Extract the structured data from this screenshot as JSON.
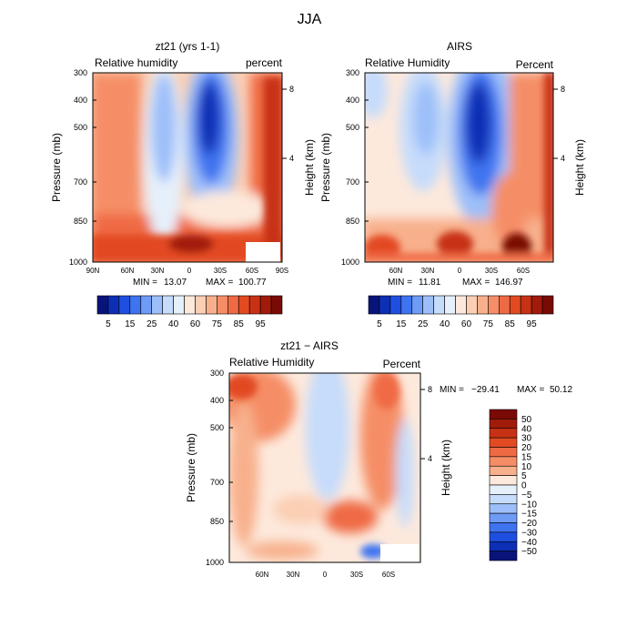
{
  "figure_title": "JJA",
  "chart_data": [
    {
      "type": "heatmap",
      "id": "model",
      "title": "zt21 (yrs 1-1)",
      "field_label": "Relative humidity",
      "units_label": "percent",
      "ylabel": "Pressure (mb)",
      "y2label": "Height (km)",
      "y_ticks": [
        "300",
        "400",
        "500",
        "700",
        "850",
        "1000"
      ],
      "y2_ticks": [
        "8",
        "4"
      ],
      "x_ticks": [
        "90N",
        "60N",
        "30N",
        "0",
        "30S",
        "60S",
        "90S"
      ],
      "stats": {
        "min_label": "MIN =",
        "min": "13.07",
        "max_label": "MAX =",
        "max": "100.77"
      },
      "colorbar": {
        "labels": [
          "5",
          "15",
          "25",
          "40",
          "60",
          "75",
          "85",
          "95"
        ],
        "colors": [
          "#08147a",
          "#0d2fb5",
          "#1f4fe0",
          "#3f74f0",
          "#6e9bf6",
          "#9dbff9",
          "#c6dcfb",
          "#e6f0fb",
          "#fde9dc",
          "#fbcfb4",
          "#f8b08c",
          "#f58e66",
          "#ef6a44",
          "#e24a22",
          "#c73214",
          "#a11b0a",
          "#7a0a05"
        ]
      }
    },
    {
      "type": "heatmap",
      "id": "obs",
      "title": "AIRS",
      "field_label": "Relative Humidity",
      "units_label": "Percent",
      "ylabel": "Pressure (mb)",
      "y2label": "Height (km)",
      "y_ticks": [
        "300",
        "400",
        "500",
        "700",
        "850",
        "1000"
      ],
      "y2_ticks": [
        "8",
        "4"
      ],
      "x_ticks": [
        "60N",
        "30N",
        "0",
        "30S",
        "60S"
      ],
      "stats": {
        "min_label": "MIN =",
        "min": "11.81",
        "max_label": "MAX =",
        "max": "146.97"
      },
      "colorbar": {
        "labels": [
          "5",
          "15",
          "25",
          "40",
          "60",
          "75",
          "85",
          "95"
        ],
        "colors": [
          "#08147a",
          "#0d2fb5",
          "#1f4fe0",
          "#3f74f0",
          "#6e9bf6",
          "#9dbff9",
          "#c6dcfb",
          "#e6f0fb",
          "#fde9dc",
          "#fbcfb4",
          "#f8b08c",
          "#f58e66",
          "#ef6a44",
          "#e24a22",
          "#c73214",
          "#a11b0a",
          "#7a0a05"
        ]
      }
    },
    {
      "type": "heatmap",
      "id": "diff",
      "title": "zt21 − AIRS",
      "field_label": "Relative Humidity",
      "units_label": "Percent",
      "ylabel": "Pressure (mb)",
      "y2label": "Height (km)",
      "y_ticks": [
        "300",
        "400",
        "500",
        "700",
        "850",
        "1000"
      ],
      "y2_ticks": [
        "8",
        "4"
      ],
      "x_ticks": [
        "60N",
        "30N",
        "0",
        "30S",
        "60S"
      ],
      "stats": {
        "min_label": "MIN =",
        "min": "−29.41",
        "max_label": "MAX =",
        "max": "50.12"
      },
      "colorbar": {
        "labels": [
          "50",
          "40",
          "30",
          "20",
          "15",
          "10",
          "5",
          "0",
          "−5",
          "−10",
          "−15",
          "−20",
          "−30",
          "−40",
          "−50"
        ],
        "colors": [
          "#7a0a05",
          "#a11b0a",
          "#c73214",
          "#e24a22",
          "#ef6a44",
          "#f58e66",
          "#f8b08c",
          "#fde9dc",
          "#e6f0fb",
          "#c6dcfb",
          "#9dbff9",
          "#6e9bf6",
          "#3f74f0",
          "#1f4fe0",
          "#0d2fb5",
          "#08147a"
        ]
      }
    }
  ]
}
